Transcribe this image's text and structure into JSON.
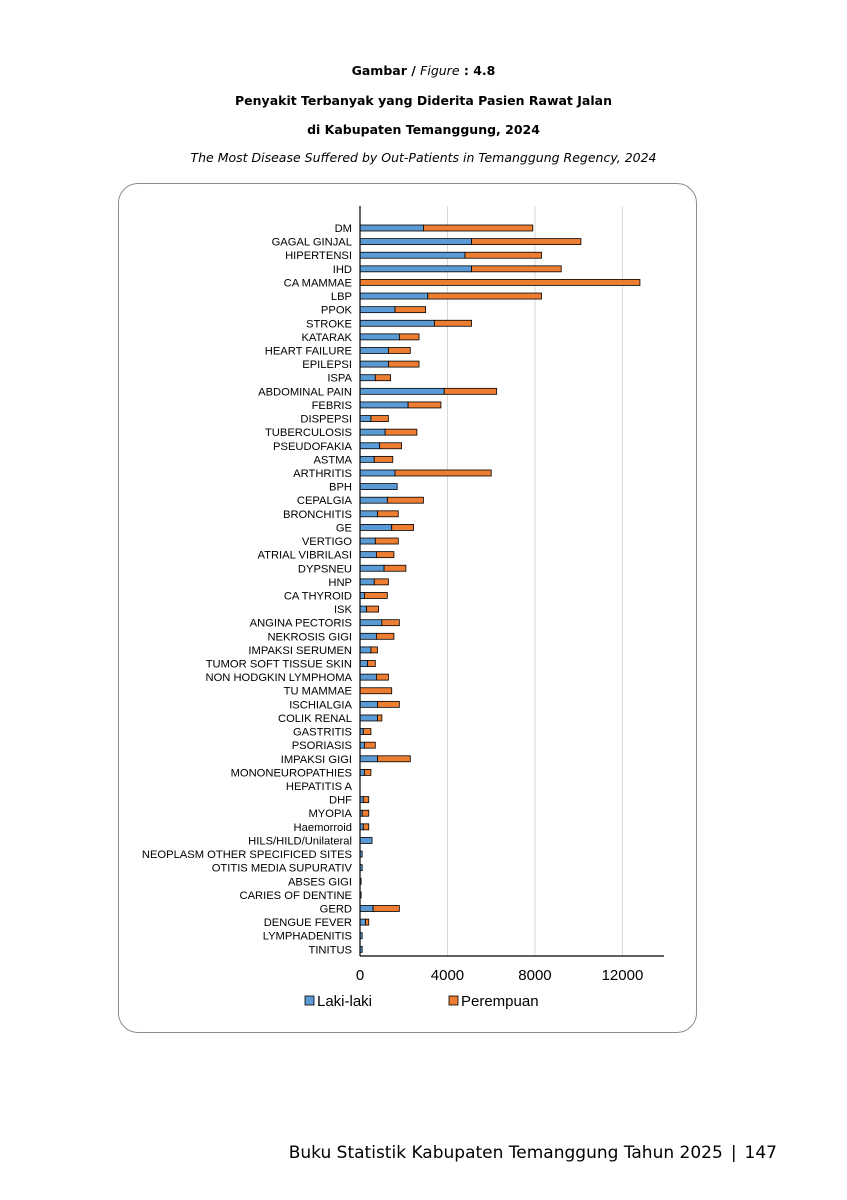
{
  "caption": {
    "gambar": "Gambar /",
    "figure": "Figure",
    "number": ": 4.8",
    "title_id": "Penyakit Terbanyak yang Diderita Pasien Rawat Jalan",
    "title_id_2": "di Kabupaten Temanggung, 2024",
    "title_en": "The Most Disease Suffered by Out-Patients in Temanggung Regency, 2024"
  },
  "footer": {
    "text": "Buku Statistik Kabupaten Temanggung Tahun 2025",
    "separator": "|",
    "page": "147"
  },
  "colors": {
    "laki": "#5b9bd5",
    "perempuan": "#ed7d31",
    "grid": "#d9d9d9",
    "axis": "#000000"
  },
  "chart_data": {
    "type": "bar",
    "orientation": "horizontal",
    "stacked": true,
    "title": "",
    "xlabel": "",
    "ylabel": "",
    "xlim": [
      0,
      13900
    ],
    "xticks": [
      "0",
      "4000",
      "8000",
      "12000"
    ],
    "grid": true,
    "legend_position": "bottom",
    "categories": [
      "DM",
      "GAGAL GINJAL",
      "HIPERTENSI",
      "IHD",
      "CA MAMMAE",
      "LBP",
      "PPOK",
      "STROKE",
      "KATARAK",
      "HEART FAILURE",
      "EPILEPSI",
      "ISPA",
      "ABDOMINAL PAIN",
      "FEBRIS",
      "DISPEPSI",
      "TUBERCULOSIS",
      "PSEUDOFAKIA",
      "ASTMA",
      "ARTHRITIS",
      "BPH",
      "CEPALGIA",
      "BRONCHITIS",
      "GE",
      "VERTIGO",
      "ATRIAL VIBRILASI",
      "DYPSNEU",
      "HNP",
      "CA THYROID",
      "ISK",
      "ANGINA PECTORIS",
      "NEKROSIS GIGI",
      "IMPAKSI SERUMEN",
      "TUMOR SOFT TISSUE SKIN",
      "NON HODGKIN LYMPHOMA",
      "TU MAMMAE",
      "ISCHIALGIA",
      "COLIK RENAL",
      "GASTRITIS",
      "PSORIASIS",
      "IMPAKSI GIGI",
      "MONONEUROPATHIES",
      "HEPATITIS A",
      "DHF",
      "MYOPIA",
      "Haemorroid",
      "HILS/HILD/Unilateral",
      "NEOPLASM OTHER SPECIFICED SITES",
      "OTITIS MEDIA SUPURATIV",
      "ABSES GIGI",
      "CARIES OF DENTINE",
      "GERD",
      "DENGUE FEVER",
      "LYMPHADENITIS",
      "TINITUS"
    ],
    "series": [
      {
        "name": "Laki-laki",
        "values": [
          2900,
          5100,
          4800,
          5100,
          0,
          3100,
          1600,
          3400,
          1800,
          1300,
          1300,
          700,
          3850,
          2200,
          500,
          1150,
          900,
          650,
          1600,
          1700,
          1250,
          800,
          1450,
          700,
          750,
          1100,
          650,
          200,
          300,
          1000,
          750,
          500,
          350,
          750,
          0,
          800,
          800,
          150,
          200,
          800,
          200,
          0,
          150,
          100,
          150,
          550,
          100,
          100,
          50,
          50,
          600,
          250,
          100,
          100
        ]
      },
      {
        "name": "Perempuan",
        "values": [
          5000,
          5000,
          3500,
          4100,
          12800,
          5200,
          1400,
          1700,
          900,
          1000,
          1400,
          700,
          2400,
          1500,
          800,
          1450,
          1000,
          850,
          4400,
          0,
          1650,
          950,
          1000,
          1050,
          800,
          1000,
          650,
          1050,
          550,
          800,
          800,
          300,
          350,
          550,
          1450,
          1000,
          200,
          350,
          500,
          1500,
          300,
          0,
          250,
          300,
          250,
          0,
          0,
          0,
          0,
          0,
          1200,
          150,
          0,
          0
        ]
      }
    ]
  }
}
